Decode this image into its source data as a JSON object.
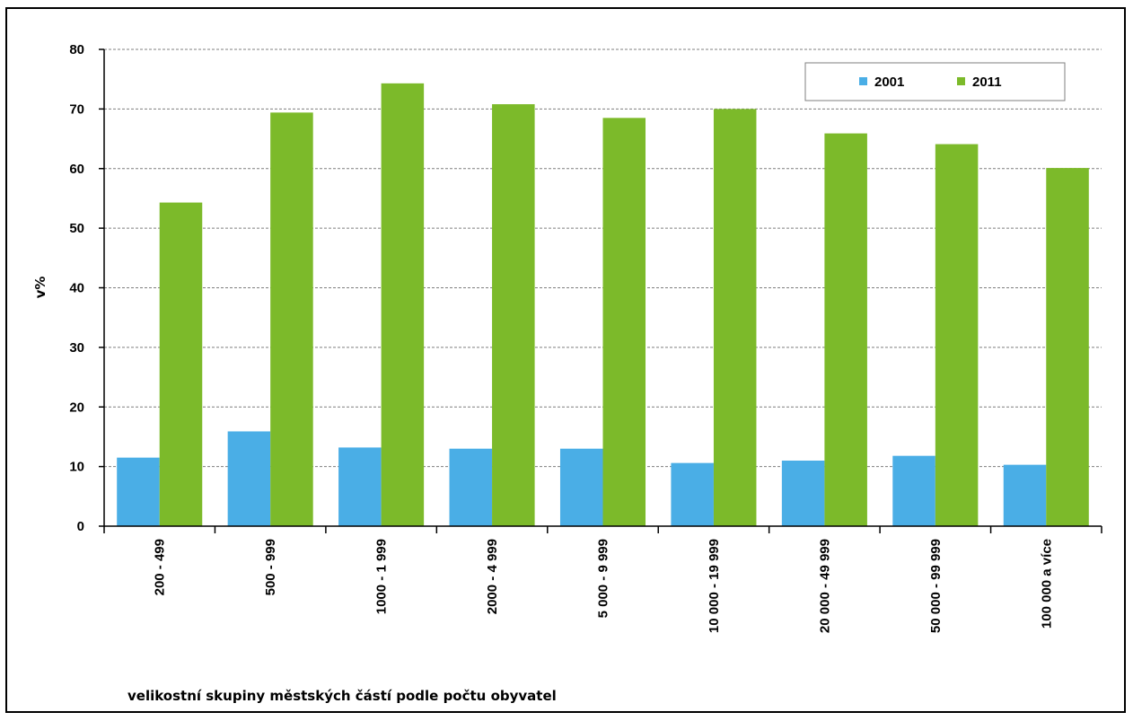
{
  "chart_data": {
    "type": "bar",
    "title": "",
    "xlabel": "velikostní skupiny městských částí podle počtu obyvatel",
    "ylabel": "v%",
    "ylim": [
      0,
      80
    ],
    "yticks": [
      0,
      10,
      20,
      30,
      40,
      50,
      60,
      70,
      80
    ],
    "grid": "horizontal dashed",
    "legend_position": "top-right",
    "categories": [
      "200 - 499",
      "500 - 999",
      "1000 - 1 999",
      "2000 - 4 999",
      "5 000 - 9 999",
      "10 000 - 19 999",
      "20 000 - 49 999",
      "50 000 - 99 999",
      "100 000 a více"
    ],
    "series": [
      {
        "name": "2001",
        "color": "#4aaee6",
        "values": [
          11.5,
          15.9,
          13.2,
          13.0,
          13.0,
          10.6,
          11.0,
          11.8,
          10.3
        ]
      },
      {
        "name": "2011",
        "color": "#7cba2a",
        "values": [
          54.3,
          69.4,
          74.3,
          70.8,
          68.5,
          70.0,
          65.9,
          64.1,
          60.1
        ]
      }
    ]
  }
}
